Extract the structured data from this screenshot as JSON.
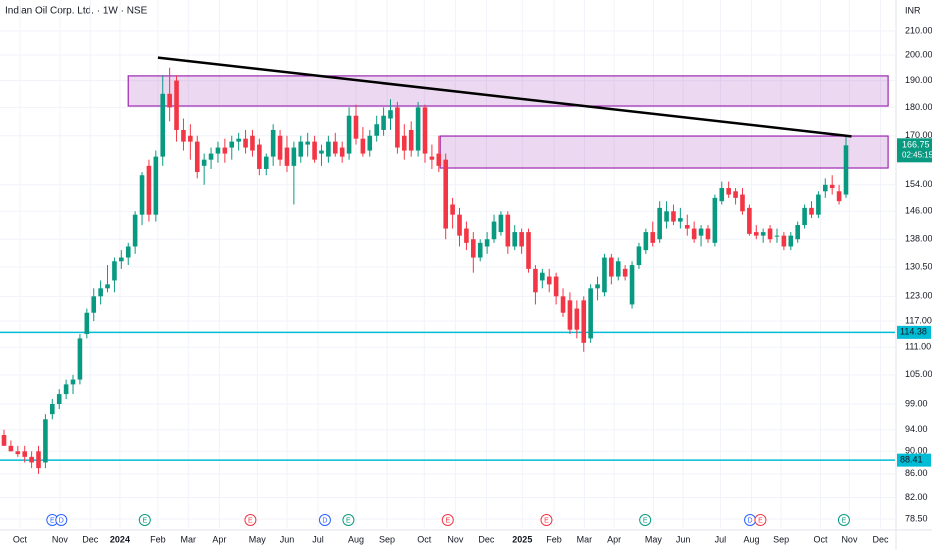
{
  "chart_data": {
    "type": "candlestick",
    "title": "Indian Oil Corp. Ltd. · 1W · NSE",
    "currency": "INR",
    "log_scale": true,
    "grid": true,
    "up_color": "#089981",
    "down_color": "#f23645",
    "ylim": [
      76.8,
      223.5
    ],
    "yticks": [
      {
        "value": 210,
        "label": "210.00"
      },
      {
        "value": 200,
        "label": "200.00"
      },
      {
        "value": 190,
        "label": "190.00"
      },
      {
        "value": 180,
        "label": "180.00"
      },
      {
        "value": 170,
        "label": "170.00"
      },
      {
        "value": 154,
        "label": "154.00"
      },
      {
        "value": 146,
        "label": "146.00"
      },
      {
        "value": 138,
        "label": "138.00"
      },
      {
        "value": 130.5,
        "label": "130.50"
      },
      {
        "value": 123,
        "label": "123.00"
      },
      {
        "value": 117,
        "label": "117.00"
      },
      {
        "value": 111,
        "label": "111.00"
      },
      {
        "value": 105,
        "label": "105.00"
      },
      {
        "value": 99,
        "label": "99.00"
      },
      {
        "value": 94,
        "label": "94.00"
      },
      {
        "value": 90,
        "label": "90.00"
      },
      {
        "value": 86,
        "label": "86.00"
      },
      {
        "value": 82,
        "label": "82.00"
      },
      {
        "value": 78.5,
        "label": "78.50"
      }
    ],
    "xlim": [
      -0.58,
      129.1
    ],
    "xticks": [
      {
        "value": 2.3,
        "label": "Oct"
      },
      {
        "value": 8.1,
        "label": "Nov"
      },
      {
        "value": 12.5,
        "label": "Dec"
      },
      {
        "value": 16.8,
        "label": "2024"
      },
      {
        "value": 22.3,
        "label": "Feb"
      },
      {
        "value": 26.7,
        "label": "Mar"
      },
      {
        "value": 31.2,
        "label": "Apr"
      },
      {
        "value": 36.7,
        "label": "May"
      },
      {
        "value": 41.0,
        "label": "Jun"
      },
      {
        "value": 45.5,
        "label": "Jul"
      },
      {
        "value": 51.0,
        "label": "Aug"
      },
      {
        "value": 55.5,
        "label": "Sep"
      },
      {
        "value": 60.9,
        "label": "Oct"
      },
      {
        "value": 65.4,
        "label": "Nov"
      },
      {
        "value": 69.9,
        "label": "Dec"
      },
      {
        "value": 75.1,
        "label": "2025"
      },
      {
        "value": 79.7,
        "label": "Feb"
      },
      {
        "value": 84.1,
        "label": "Mar"
      },
      {
        "value": 88.4,
        "label": "Apr"
      },
      {
        "value": 94.1,
        "label": "May"
      },
      {
        "value": 98.4,
        "label": "Jun"
      },
      {
        "value": 103.8,
        "label": "Jul"
      },
      {
        "value": 108.3,
        "label": "Aug"
      },
      {
        "value": 112.6,
        "label": "Sep"
      },
      {
        "value": 118.3,
        "label": "Oct"
      },
      {
        "value": 122.5,
        "label": "Nov"
      },
      {
        "value": 127.0,
        "label": "Dec"
      }
    ],
    "candles": {
      "open": [
        93,
        91,
        90,
        90,
        89,
        90,
        88,
        97,
        99,
        101,
        103,
        104,
        114,
        119,
        123,
        125,
        127,
        132,
        133,
        136,
        145,
        160,
        145,
        163,
        185,
        190,
        172,
        170,
        168,
        160,
        162,
        164,
        166,
        166,
        168,
        169,
        170,
        167,
        159,
        163,
        170,
        166,
        160,
        163,
        167,
        168,
        164,
        163,
        168,
        166,
        164,
        177,
        169,
        165,
        170,
        172,
        176,
        180,
        170,
        172,
        165,
        180,
        163,
        164,
        162,
        148,
        145,
        141,
        138,
        133,
        136,
        138,
        140,
        145,
        136,
        140,
        140,
        130,
        127,
        128,
        128,
        123,
        122,
        120,
        122,
        113,
        125,
        124,
        133,
        128,
        130,
        121,
        131,
        135,
        140,
        138,
        143,
        146,
        143,
        142,
        141,
        139,
        141,
        137,
        149,
        153,
        152,
        151,
        147,
        140,
        139,
        141,
        139,
        139,
        136,
        138,
        142,
        147,
        145,
        152,
        154,
        152,
        151
      ],
      "high": [
        94,
        92,
        91,
        91,
        90,
        91,
        97,
        100,
        102,
        104,
        105,
        114,
        120,
        125,
        127,
        131,
        133,
        135,
        137,
        146,
        158,
        162,
        165,
        192,
        195,
        192,
        176,
        174,
        170,
        164,
        166,
        168,
        169,
        170,
        171,
        172,
        172,
        169,
        164,
        174,
        172,
        170,
        168,
        170,
        171,
        170,
        167,
        170,
        171,
        168,
        180,
        181,
        173,
        172,
        177,
        180,
        183,
        182,
        174,
        175,
        182,
        181,
        167,
        170,
        164,
        150,
        147,
        143,
        140,
        138,
        140,
        145,
        146,
        146,
        142,
        141,
        141,
        131,
        130,
        130,
        129,
        125,
        124,
        122,
        123,
        126,
        128,
        134,
        134,
        133,
        131,
        132,
        137,
        141,
        143,
        149,
        149,
        148,
        147,
        145,
        143,
        142,
        142,
        151,
        155,
        155,
        153,
        153,
        148,
        142,
        141,
        142,
        141,
        140,
        140,
        143,
        148,
        149,
        152,
        156,
        157,
        154,
        170
      ],
      "low": [
        91,
        90,
        89,
        88,
        87,
        86,
        87,
        96,
        98,
        100,
        101,
        103,
        113,
        117,
        121,
        124,
        124,
        130,
        131,
        134,
        142,
        143,
        143,
        160,
        175,
        168,
        165,
        162,
        156,
        154,
        159,
        161,
        161,
        162,
        165,
        164,
        163,
        157,
        157,
        160,
        160,
        158,
        148,
        161,
        163,
        161,
        160,
        161,
        163,
        161,
        162,
        167,
        163,
        163,
        168,
        170,
        172,
        164,
        162,
        163,
        163,
        161,
        159,
        158,
        138,
        141,
        136,
        135,
        129,
        132,
        134,
        137,
        139,
        134,
        135,
        134,
        129,
        121,
        125,
        124,
        121,
        118,
        114,
        113,
        110,
        112,
        122,
        123,
        126,
        127,
        127,
        120,
        130,
        134,
        136,
        137,
        141,
        142,
        141,
        139,
        137,
        136,
        137,
        136,
        148,
        150,
        148,
        145,
        139,
        138,
        137,
        137,
        137,
        135,
        135,
        137,
        141,
        144,
        144,
        150,
        151,
        148,
        150
      ],
      "close": [
        91,
        90,
        89.5,
        89,
        88,
        87,
        96,
        99,
        101,
        103,
        104,
        113,
        119,
        123,
        125,
        126,
        132,
        133,
        136,
        145,
        157,
        145,
        163,
        185,
        180,
        172,
        168,
        168,
        158,
        162,
        164,
        166,
        164,
        168,
        169,
        166,
        165,
        159,
        163,
        172,
        162,
        160,
        166,
        168,
        168,
        162,
        165,
        168,
        164,
        163,
        177,
        169,
        164,
        170,
        174,
        177,
        179,
        166,
        165,
        165,
        180,
        164,
        162,
        160,
        141,
        145,
        139,
        137,
        133,
        137,
        138,
        143,
        145,
        136,
        140,
        136,
        130,
        124,
        129,
        126,
        123,
        119,
        115,
        115,
        112,
        125,
        126,
        133,
        128,
        132,
        128,
        131,
        136,
        140,
        137,
        147,
        146,
        143,
        144,
        141,
        138,
        141,
        138,
        150,
        153,
        151,
        150,
        146,
        139.5,
        139,
        140,
        138,
        139,
        136,
        139,
        142,
        147,
        145,
        151,
        154,
        153,
        149,
        166.75
      ]
    },
    "countdown": "02:45:15",
    "levels": [
      {
        "value": 114.38,
        "color": "#00bcd4"
      },
      {
        "value": 88.41,
        "color": "#00bcd4"
      }
    ],
    "zones": [
      {
        "start": 18.0,
        "end": 128.1,
        "top": 191.8,
        "bottom": 180.5,
        "color": "#9c27b0"
      },
      {
        "start": 63.2,
        "end": 128.1,
        "top": 169.9,
        "bottom": 159.3,
        "color": "#9c27b0"
      }
    ],
    "trendline": {
      "start": 22.3,
      "end": 122.8,
      "start_value": 199,
      "end_value": 169.8,
      "color": "#000000"
    },
    "events": [
      {
        "index": 7.0,
        "label": "E",
        "color": "#2962ff"
      },
      {
        "index": 8.3,
        "label": "D",
        "color": "#2962ff"
      },
      {
        "index": 20.4,
        "label": "E",
        "color": "#089981"
      },
      {
        "index": 35.7,
        "label": "E",
        "color": "#f23645"
      },
      {
        "index": 46.5,
        "label": "D",
        "color": "#2962ff"
      },
      {
        "index": 49.9,
        "label": "E",
        "color": "#089981"
      },
      {
        "index": 64.3,
        "label": "E",
        "color": "#f23645"
      },
      {
        "index": 78.6,
        "label": "E",
        "color": "#f23645"
      },
      {
        "index": 92.9,
        "label": "E",
        "color": "#089981"
      },
      {
        "index": 108.1,
        "label": "D",
        "color": "#2962ff"
      },
      {
        "index": 109.6,
        "label": "E",
        "color": "#f23645"
      },
      {
        "index": 121.7,
        "label": "E",
        "color": "#089981"
      }
    ]
  }
}
